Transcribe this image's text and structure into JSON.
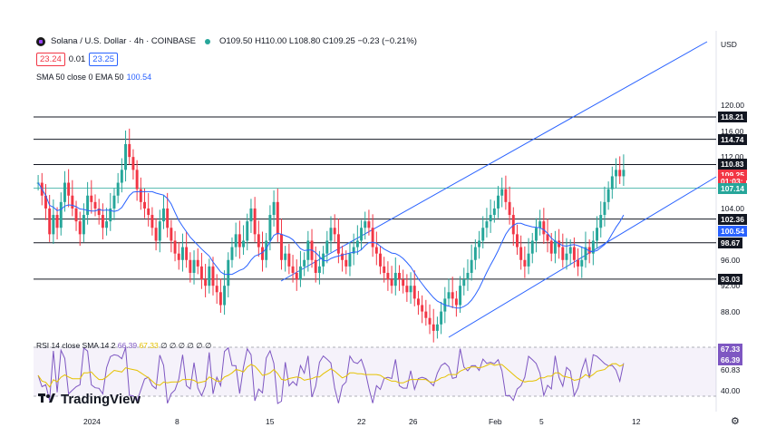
{
  "header": {
    "symbol_title": "Solana / U.S. Dollar · 4h · COINBASE",
    "ohlc": "O109.50 H110.00 L108.80 C109.25 −0.23 (−0.21%)",
    "sell_price": "23.24",
    "spread": "0.01",
    "buy_price": "23.25"
  },
  "indicator_legend": {
    "label": "SMA 50 close 0 EMA 50",
    "value": "100.54"
  },
  "rsi_legend": {
    "label": "RSI 14 close SMA 14 2",
    "rsi": "66.39",
    "sma": "67.33",
    "rest": "∅ ∅ ∅ ∅ ∅ ∅"
  },
  "price_axis": {
    "currency": "USD",
    "ticks": [
      "120.00",
      "116.00",
      "112.00",
      "104.00",
      "96.00",
      "92.00",
      "88.00"
    ],
    "levels": [
      {
        "label": "118.21",
        "price": 118.21,
        "color": "#131722"
      },
      {
        "label": "114.74",
        "price": 114.74,
        "color": "#131722"
      },
      {
        "label": "110.83",
        "price": 110.83,
        "color": "#131722"
      },
      {
        "label": "109.25",
        "price": 109.25,
        "color": "#f23645"
      },
      {
        "label": "01:03:",
        "price": 108.2,
        "color": "#f23645"
      },
      {
        "label": "107.14",
        "price": 107.14,
        "color": "#26a69a"
      },
      {
        "label": "102.36",
        "price": 102.36,
        "color": "#131722"
      },
      {
        "label": "100.54",
        "price": 100.54,
        "color": "#2962ff"
      },
      {
        "label": "98.67",
        "price": 98.67,
        "color": "#131722"
      },
      {
        "label": "93.03",
        "price": 93.03,
        "color": "#131722"
      }
    ]
  },
  "rsi_axis": {
    "ticks": [
      "67.33",
      "66.39",
      "60.83",
      "40.00"
    ]
  },
  "time_axis": [
    "2024",
    "8",
    "15",
    "22",
    "26",
    "Feb",
    "5",
    "12"
  ],
  "brand": "TradingView",
  "colors": {
    "up": "#26a69a",
    "down": "#f23645",
    "sma": "#2962ff",
    "rsi": "#7e57c2",
    "rsi_sma": "#e5c100"
  },
  "chart_data": {
    "type": "candlestick",
    "ylim": [
      84,
      123
    ],
    "horizontal_levels": [
      118.21,
      114.74,
      110.83,
      107.14,
      102.36,
      98.67,
      93.03
    ],
    "closes": [
      108,
      106,
      104,
      100,
      103,
      101,
      105,
      108,
      106,
      104,
      102,
      100,
      103,
      106,
      105,
      104,
      103,
      101,
      102,
      104,
      106,
      108,
      110,
      114,
      112,
      110,
      107,
      105,
      104,
      103,
      101,
      99,
      102,
      104,
      101,
      99,
      97,
      96,
      98,
      96,
      94,
      96,
      95,
      93,
      92,
      95,
      92,
      91,
      89,
      92,
      96,
      98,
      100,
      98,
      99,
      102,
      104,
      100,
      98,
      96,
      99,
      103,
      105,
      100,
      96,
      97,
      95,
      94,
      93,
      95,
      96,
      99,
      96,
      94,
      95,
      97,
      99,
      101,
      100,
      97,
      96,
      95,
      97,
      98,
      99,
      101,
      102,
      101,
      98,
      97,
      95,
      94,
      93,
      92,
      94,
      93,
      92,
      91,
      92,
      90,
      89,
      88,
      87,
      86,
      85,
      86,
      88,
      90,
      91,
      90,
      89,
      92,
      93,
      94,
      96,
      98,
      99,
      101,
      102,
      103,
      104,
      106,
      107,
      105,
      103,
      100,
      98,
      96,
      95,
      97,
      99,
      101,
      102,
      100,
      99,
      97,
      99,
      98,
      96,
      97,
      98,
      96,
      95,
      96,
      98,
      97,
      99,
      101,
      103,
      105,
      107,
      109,
      110,
      109,
      110
    ]
  }
}
